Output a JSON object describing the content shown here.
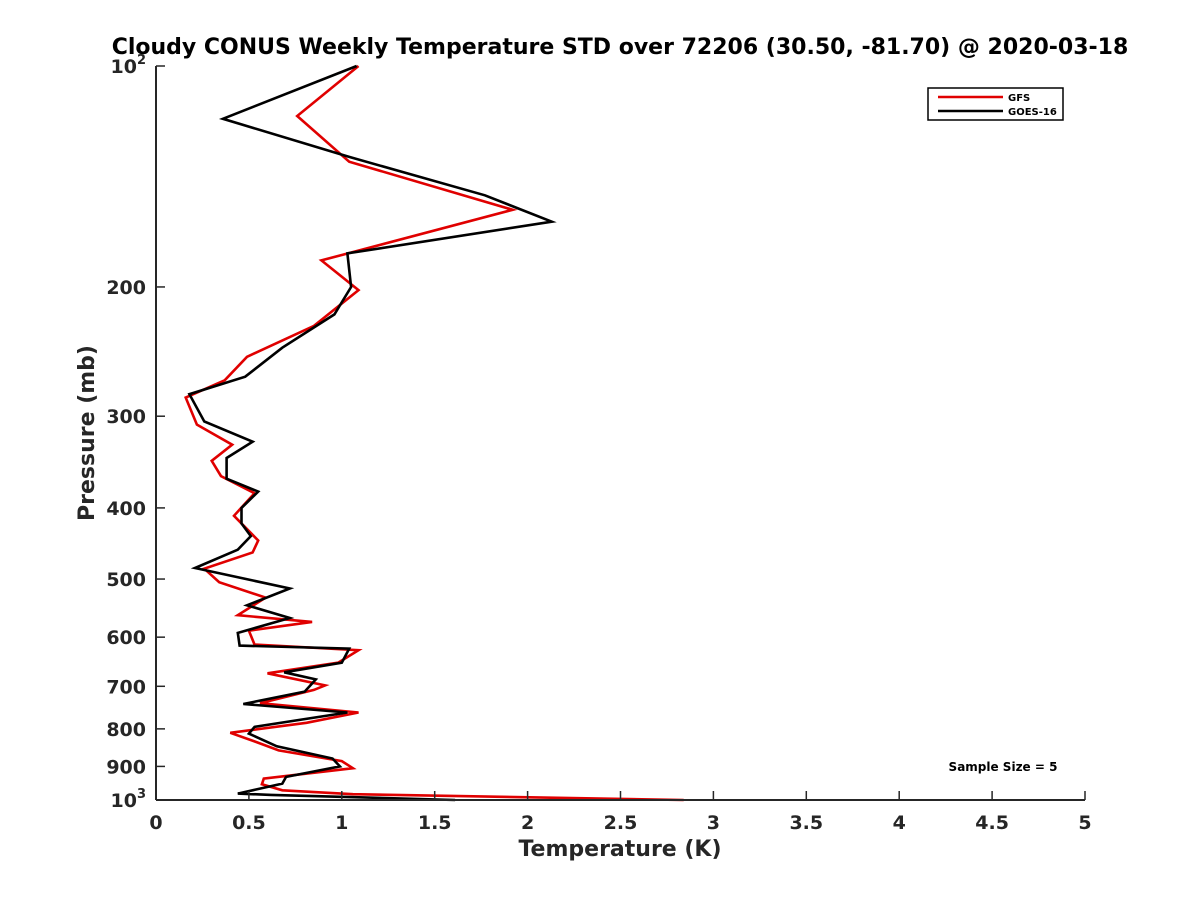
{
  "chart_data": {
    "type": "line",
    "title": "Cloudy CONUS Weekly Temperature STD over 72206 (30.50, -81.70) @ 2020-03-18",
    "xlabel": "Temperature (K)",
    "ylabel": "Pressure (mb)",
    "xlim": [
      0,
      5
    ],
    "ylim": [
      100,
      1000
    ],
    "yscale": "log",
    "y_reversed": true,
    "grid": false,
    "legend_position": "top-right",
    "annotation": "Sample Size = 5",
    "x_ticks": [
      {
        "value": 0,
        "label": "0"
      },
      {
        "value": 0.5,
        "label": "0.5"
      },
      {
        "value": 1,
        "label": "1"
      },
      {
        "value": 1.5,
        "label": "1.5"
      },
      {
        "value": 2,
        "label": "2"
      },
      {
        "value": 2.5,
        "label": "2.5"
      },
      {
        "value": 3,
        "label": "3"
      },
      {
        "value": 3.5,
        "label": "3.5"
      },
      {
        "value": 4,
        "label": "4"
      },
      {
        "value": 4.5,
        "label": "4.5"
      },
      {
        "value": 5,
        "label": "5"
      }
    ],
    "y_ticks": [
      {
        "value": 100,
        "base": "10",
        "exp": "2"
      },
      {
        "value": 200,
        "base": "200",
        "exp": ""
      },
      {
        "value": 300,
        "base": "300",
        "exp": ""
      },
      {
        "value": 400,
        "base": "400",
        "exp": ""
      },
      {
        "value": 500,
        "base": "500",
        "exp": ""
      },
      {
        "value": 600,
        "base": "600",
        "exp": ""
      },
      {
        "value": 700,
        "base": "700",
        "exp": ""
      },
      {
        "value": 800,
        "base": "800",
        "exp": ""
      },
      {
        "value": 900,
        "base": "900",
        "exp": ""
      },
      {
        "value": 1000,
        "base": "10",
        "exp": "3"
      }
    ],
    "series": [
      {
        "name": "GFS",
        "color": "#e00000",
        "points": [
          [
            1.09,
            100
          ],
          [
            0.76,
            117
          ],
          [
            1.04,
            135
          ],
          [
            1.92,
            157
          ],
          [
            0.89,
            184
          ],
          [
            1.09,
            202
          ],
          [
            0.85,
            226
          ],
          [
            0.49,
            249
          ],
          [
            0.37,
            268
          ],
          [
            0.16,
            283
          ],
          [
            0.22,
            308
          ],
          [
            0.41,
            328
          ],
          [
            0.3,
            345
          ],
          [
            0.35,
            362
          ],
          [
            0.53,
            382
          ],
          [
            0.42,
            410
          ],
          [
            0.55,
            443
          ],
          [
            0.52,
            460
          ],
          [
            0.26,
            484
          ],
          [
            0.34,
            505
          ],
          [
            0.59,
            530
          ],
          [
            0.44,
            560
          ],
          [
            0.84,
            572
          ],
          [
            0.5,
            588
          ],
          [
            0.53,
            614
          ],
          [
            1.09,
            625
          ],
          [
            0.98,
            650
          ],
          [
            0.6,
            672
          ],
          [
            0.91,
            698
          ],
          [
            0.85,
            708
          ],
          [
            0.56,
            738
          ],
          [
            1.09,
            760
          ],
          [
            0.81,
            785
          ],
          [
            0.4,
            810
          ],
          [
            0.53,
            832
          ],
          [
            0.66,
            856
          ],
          [
            1.0,
            885
          ],
          [
            1.06,
            905
          ],
          [
            0.58,
            935
          ],
          [
            0.57,
            952
          ],
          [
            0.68,
            970
          ],
          [
            1.06,
            982
          ],
          [
            2.84,
            1000
          ]
        ]
      },
      {
        "name": "GOES-16",
        "color": "#000000",
        "points": [
          [
            1.08,
            100
          ],
          [
            0.36,
            118
          ],
          [
            1.04,
            133
          ],
          [
            1.77,
            150
          ],
          [
            2.13,
            163
          ],
          [
            1.03,
            180
          ],
          [
            1.05,
            200
          ],
          [
            0.96,
            218
          ],
          [
            0.68,
            242
          ],
          [
            0.48,
            265
          ],
          [
            0.18,
            280
          ],
          [
            0.26,
            305
          ],
          [
            0.52,
            325
          ],
          [
            0.38,
            342
          ],
          [
            0.38,
            365
          ],
          [
            0.55,
            380
          ],
          [
            0.46,
            400
          ],
          [
            0.46,
            420
          ],
          [
            0.51,
            437
          ],
          [
            0.44,
            456
          ],
          [
            0.21,
            483
          ],
          [
            0.72,
            515
          ],
          [
            0.49,
            543
          ],
          [
            0.72,
            565
          ],
          [
            0.44,
            592
          ],
          [
            0.45,
            616
          ],
          [
            1.04,
            622
          ],
          [
            1.0,
            650
          ],
          [
            0.69,
            670
          ],
          [
            0.86,
            685
          ],
          [
            0.8,
            712
          ],
          [
            0.47,
            740
          ],
          [
            1.03,
            760
          ],
          [
            0.53,
            795
          ],
          [
            0.5,
            812
          ],
          [
            0.65,
            845
          ],
          [
            0.95,
            878
          ],
          [
            0.99,
            900
          ],
          [
            0.7,
            930
          ],
          [
            0.68,
            950
          ],
          [
            0.44,
            980
          ],
          [
            0.62,
            984
          ],
          [
            1.61,
            1000
          ]
        ]
      }
    ]
  }
}
